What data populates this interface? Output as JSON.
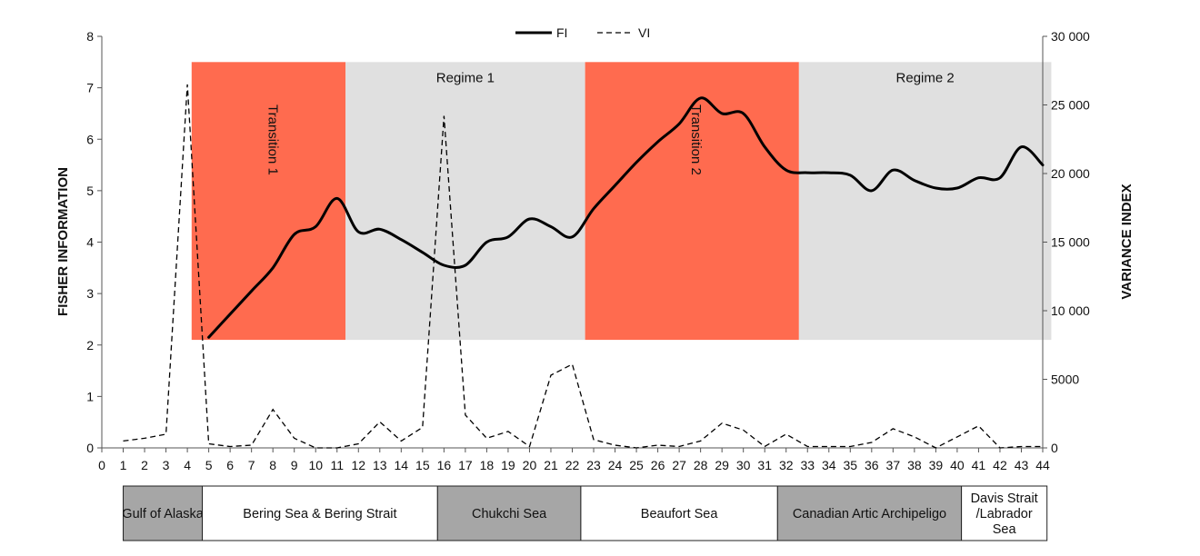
{
  "chart_data": {
    "type": "line",
    "x_ticks": [
      0,
      1,
      2,
      3,
      4,
      5,
      6,
      7,
      8,
      9,
      10,
      11,
      12,
      13,
      14,
      15,
      16,
      17,
      18,
      19,
      20,
      21,
      22,
      23,
      24,
      25,
      26,
      27,
      28,
      29,
      30,
      31,
      32,
      33,
      34,
      35,
      36,
      37,
      38,
      39,
      40,
      41,
      42,
      43,
      44
    ],
    "xlim": [
      0,
      44
    ],
    "ylabel_left": "FISHER INFORMATION",
    "ylim_left": [
      0,
      8
    ],
    "yticks_left": [
      "0",
      "1",
      "2",
      "3",
      "4",
      "5",
      "6",
      "7",
      "8"
    ],
    "ylabel_right": "VARIANCE INDEX",
    "ylim_right": [
      0,
      30000
    ],
    "yticks_right": [
      {
        "value": 0,
        "label": "0"
      },
      {
        "value": 5000,
        "label": "5000"
      },
      {
        "value": 10000,
        "label": "10 000"
      },
      {
        "value": 15000,
        "label": "15 000"
      },
      {
        "value": 20000,
        "label": "20 000"
      },
      {
        "value": 25000,
        "label": "25 000"
      },
      {
        "value": 30000,
        "label": "30 000"
      }
    ],
    "legend_position": "top-center",
    "series": [
      {
        "name": "FI",
        "axis": "left",
        "style": "solid",
        "x": [
          5,
          6,
          7,
          8,
          9,
          10,
          11,
          12,
          13,
          14,
          15,
          16,
          17,
          18,
          19,
          20,
          21,
          22,
          23,
          24,
          25,
          26,
          27,
          28,
          29,
          30,
          31,
          32,
          33,
          34,
          35,
          36,
          37,
          38,
          39,
          40,
          41,
          42,
          43,
          44
        ],
        "y": [
          2.15,
          2.6,
          3.05,
          3.5,
          4.15,
          4.3,
          4.85,
          4.2,
          4.25,
          4.05,
          3.8,
          3.55,
          3.55,
          4.0,
          4.1,
          4.45,
          4.3,
          4.1,
          4.65,
          5.1,
          5.55,
          5.95,
          6.3,
          6.8,
          6.5,
          6.5,
          5.85,
          5.4,
          5.35,
          5.35,
          5.3,
          5.0,
          5.4,
          5.2,
          5.05,
          5.05,
          5.25,
          5.25,
          5.85,
          5.5
        ]
      },
      {
        "name": "VI",
        "axis": "right",
        "style": "dashed",
        "x": [
          1,
          2,
          3,
          4,
          5,
          6,
          7,
          8,
          9,
          10,
          11,
          12,
          13,
          14,
          15,
          16,
          17,
          18,
          19,
          20,
          21,
          22,
          23,
          24,
          25,
          26,
          27,
          28,
          29,
          30,
          31,
          32,
          33,
          34,
          35,
          36,
          37,
          38,
          39,
          40,
          41,
          42,
          43,
          44
        ],
        "y": [
          500,
          700,
          1000,
          26500,
          300,
          100,
          200,
          2800,
          700,
          0,
          0,
          300,
          1900,
          500,
          1500,
          24200,
          2400,
          700,
          1200,
          100,
          5300,
          6100,
          600,
          200,
          0,
          200,
          100,
          500,
          1800,
          1300,
          100,
          1000,
          100,
          100,
          100,
          400,
          1400,
          800,
          0,
          800,
          1600,
          0,
          100,
          100
        ]
      }
    ],
    "bands": [
      {
        "label": "Transition 1",
        "x_start": 4.2,
        "x_end": 11.4,
        "fi_low": 2.1,
        "fi_high": 7.5,
        "color": "#FF6B4F",
        "vertical": true
      },
      {
        "label": "Regime 1",
        "x_start": 11.4,
        "x_end": 22.6,
        "fi_low": 2.1,
        "fi_high": 7.5,
        "color": "#E0E0E0",
        "vertical": false
      },
      {
        "label": "Transition 2",
        "x_start": 22.6,
        "x_end": 32.6,
        "fi_low": 2.1,
        "fi_high": 7.5,
        "color": "#FF6B4F",
        "vertical": true
      },
      {
        "label": "Regime 2",
        "x_start": 32.6,
        "x_end": 44.4,
        "fi_low": 2.1,
        "fi_high": 7.5,
        "color": "#E0E0E0",
        "vertical": false
      }
    ],
    "regions": [
      {
        "label": "Gulf of Alaska",
        "x_start": 1.0,
        "x_end": 4.7,
        "shaded": true
      },
      {
        "label": "Bering Sea & Bering Strait",
        "x_start": 4.7,
        "x_end": 15.7,
        "shaded": false
      },
      {
        "label": "Chukchi Sea",
        "x_start": 15.7,
        "x_end": 22.4,
        "shaded": true
      },
      {
        "label": "Beaufort Sea",
        "x_start": 22.4,
        "x_end": 31.6,
        "shaded": false
      },
      {
        "label": "Canadian Artic Archipeligo",
        "x_start": 31.6,
        "x_end": 40.2,
        "shaded": true
      },
      {
        "label": "Davis Strait\n/Labrador\nSea",
        "x_start": 40.2,
        "x_end": 44.2,
        "shaded": false
      }
    ]
  },
  "colors": {
    "transition": "#FF6B4F",
    "regime": "#E0E0E0",
    "region_shaded": "#A6A6A6",
    "region_plain": "#FFFFFF",
    "line": "#000000"
  }
}
